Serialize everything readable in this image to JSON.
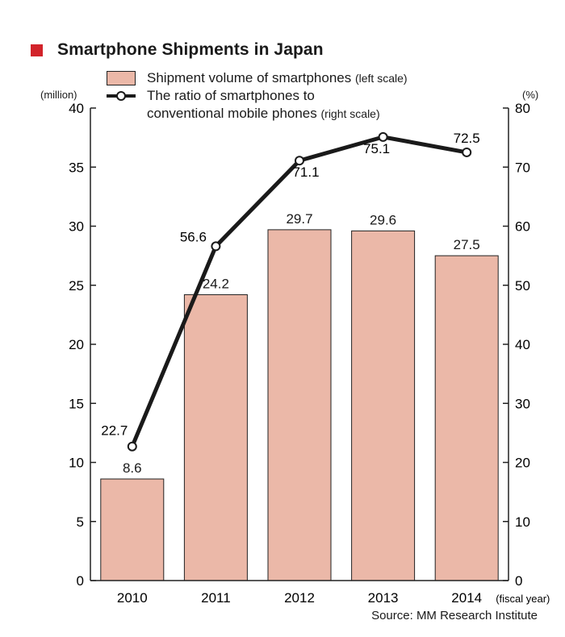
{
  "title": "Smartphone Shipments in Japan",
  "colors": {
    "accent": "#d2232a",
    "bar": "#ebb8a8",
    "line": "#1a1a1a"
  },
  "legend": {
    "bar_label": "Shipment volume of smartphones",
    "bar_note": "(left scale)",
    "line_label_1": "The ratio of smartphones to",
    "line_label_2": "conventional mobile  phones",
    "line_note": "(right scale)"
  },
  "left_unit": "(million)",
  "right_unit": "(%)",
  "x_unit": "(fiscal year)",
  "source": "Source: MM Research Institute",
  "chart_data": {
    "type": "bar",
    "categories": [
      "2010",
      "2011",
      "2012",
      "2013",
      "2014"
    ],
    "series": [
      {
        "name": "Shipment volume of smartphones",
        "type": "bar",
        "axis": "left",
        "values": [
          8.6,
          24.2,
          29.7,
          29.6,
          27.5
        ]
      },
      {
        "name": "The ratio of smartphones to conventional mobile phones",
        "type": "line",
        "axis": "right",
        "values": [
          22.7,
          56.6,
          71.1,
          75.1,
          72.5
        ]
      }
    ],
    "value_labels": {
      "bars": [
        "8.6",
        "24.2",
        "29.7",
        "29.6",
        "27.5"
      ],
      "line": [
        "22.7",
        "56.6",
        "71.1",
        "75.1",
        "72.5"
      ]
    },
    "ylim_left": [
      0,
      40
    ],
    "ylim_right": [
      0,
      80
    ],
    "yticks_left": [
      "0",
      "5",
      "10",
      "15",
      "20",
      "25",
      "30",
      "35",
      "40"
    ],
    "yticks_right": [
      "0",
      "10",
      "20",
      "30",
      "40",
      "50",
      "60",
      "70",
      "80"
    ],
    "grid": false,
    "legend_position": "top-left"
  }
}
